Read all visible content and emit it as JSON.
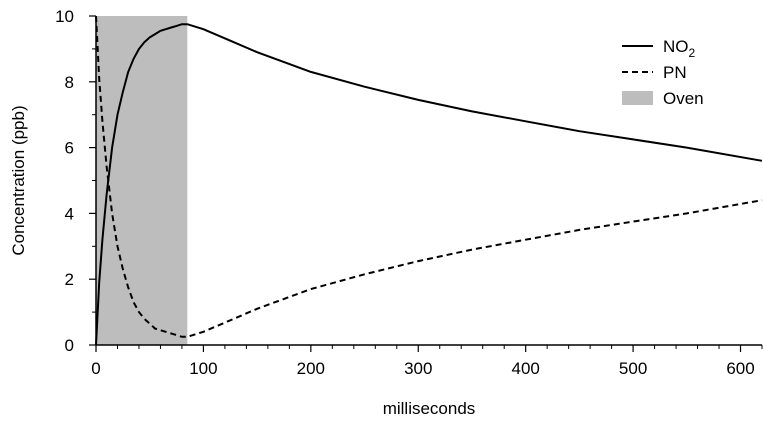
{
  "chart_data": {
    "type": "line",
    "title": "",
    "xlabel": "milliseconds",
    "ylabel": "Concentration (ppb)",
    "xlim": [
      0,
      620
    ],
    "ylim": [
      0,
      10
    ],
    "xticks": [
      0,
      100,
      200,
      300,
      400,
      500,
      600
    ],
    "yticks": [
      0,
      2,
      4,
      6,
      8,
      10
    ],
    "xtick_labels": [
      "0",
      "100",
      "200",
      "300",
      "400",
      "500",
      "600"
    ],
    "ytick_labels": [
      "0",
      "2",
      "4",
      "6",
      "8",
      "10"
    ],
    "grid": false,
    "legend_position": "top-right",
    "shaded_regions": [
      {
        "name": "Oven",
        "x_start": 0,
        "x_end": 85,
        "color": "#bdbdbd"
      }
    ],
    "series": [
      {
        "name": "NO2",
        "legend_main": "NO",
        "legend_sub": "2",
        "style": "solid",
        "color": "#000000",
        "x": [
          0,
          3,
          6,
          10,
          15,
          20,
          25,
          30,
          35,
          40,
          45,
          50,
          55,
          60,
          65,
          70,
          75,
          80,
          85,
          100,
          125,
          150,
          175,
          200,
          250,
          300,
          350,
          400,
          450,
          500,
          550,
          620
        ],
        "y": [
          0,
          1.9,
          3.2,
          4.6,
          6.0,
          7.0,
          7.7,
          8.3,
          8.7,
          9.0,
          9.2,
          9.35,
          9.45,
          9.55,
          9.6,
          9.65,
          9.7,
          9.75,
          9.75,
          9.6,
          9.25,
          8.9,
          8.6,
          8.3,
          7.85,
          7.45,
          7.1,
          6.8,
          6.5,
          6.25,
          6.0,
          5.6
        ]
      },
      {
        "name": "PN",
        "style": "dashed",
        "color": "#000000",
        "x": [
          0,
          3,
          6,
          10,
          15,
          20,
          25,
          30,
          35,
          40,
          45,
          50,
          55,
          60,
          65,
          70,
          75,
          80,
          85,
          100,
          125,
          150,
          175,
          200,
          250,
          300,
          350,
          400,
          450,
          500,
          550,
          620
        ],
        "y": [
          10,
          8.1,
          6.8,
          5.4,
          4.0,
          3.0,
          2.3,
          1.75,
          1.3,
          1.0,
          0.8,
          0.65,
          0.5,
          0.45,
          0.4,
          0.35,
          0.3,
          0.25,
          0.25,
          0.4,
          0.75,
          1.1,
          1.4,
          1.7,
          2.15,
          2.55,
          2.9,
          3.2,
          3.5,
          3.75,
          4.0,
          4.4
        ]
      }
    ]
  }
}
